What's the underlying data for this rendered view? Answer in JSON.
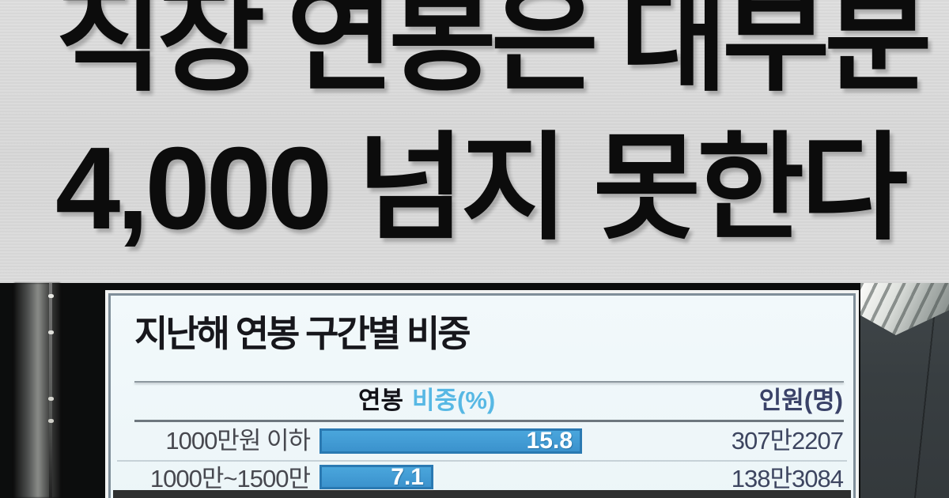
{
  "headline": {
    "line1": "직장 연봉은 대부분",
    "line2": "4,000 넘지 못한다"
  },
  "panel": {
    "title": "지난해 연봉 구간별 비중",
    "columns": {
      "salary": "연봉",
      "share": "비중(%)",
      "people": "인원(명)"
    },
    "rows": [
      {
        "range": "1000만원 이하",
        "share_label": "15.8",
        "share_value": 15.8,
        "people": "307만2207"
      },
      {
        "range": "1000만~1500만",
        "share_label": "7.1",
        "share_value": 7.1,
        "people": "138만3084"
      }
    ]
  },
  "colors": {
    "bar_fill": "#3f9ed6",
    "bar_border": "#2a79b2",
    "share_header": "#57b8e4",
    "people_text": "#3a4268",
    "card_bg": "#eef6f9",
    "headline_bg": "#dadada",
    "headline_text": "#0c0c0c"
  },
  "chart_data": {
    "type": "bar",
    "title": "지난해 연봉 구간별 비중",
    "orientation": "horizontal",
    "categories": [
      "1000만원 이하",
      "1000만~1500만"
    ],
    "series": [
      {
        "name": "비중(%)",
        "values": [
          15.8,
          7.1
        ]
      },
      {
        "name": "인원(명)",
        "values": [
          3072207,
          1383084
        ],
        "display": [
          "307만2207",
          "138만3084"
        ]
      }
    ],
    "xlabel": "비중(%)",
    "ylabel": "연봉",
    "xlim": [
      0,
      20
    ],
    "grid": false,
    "legend_position": "header-row",
    "note": "value labels shown inside bars; people counts right-aligned"
  }
}
